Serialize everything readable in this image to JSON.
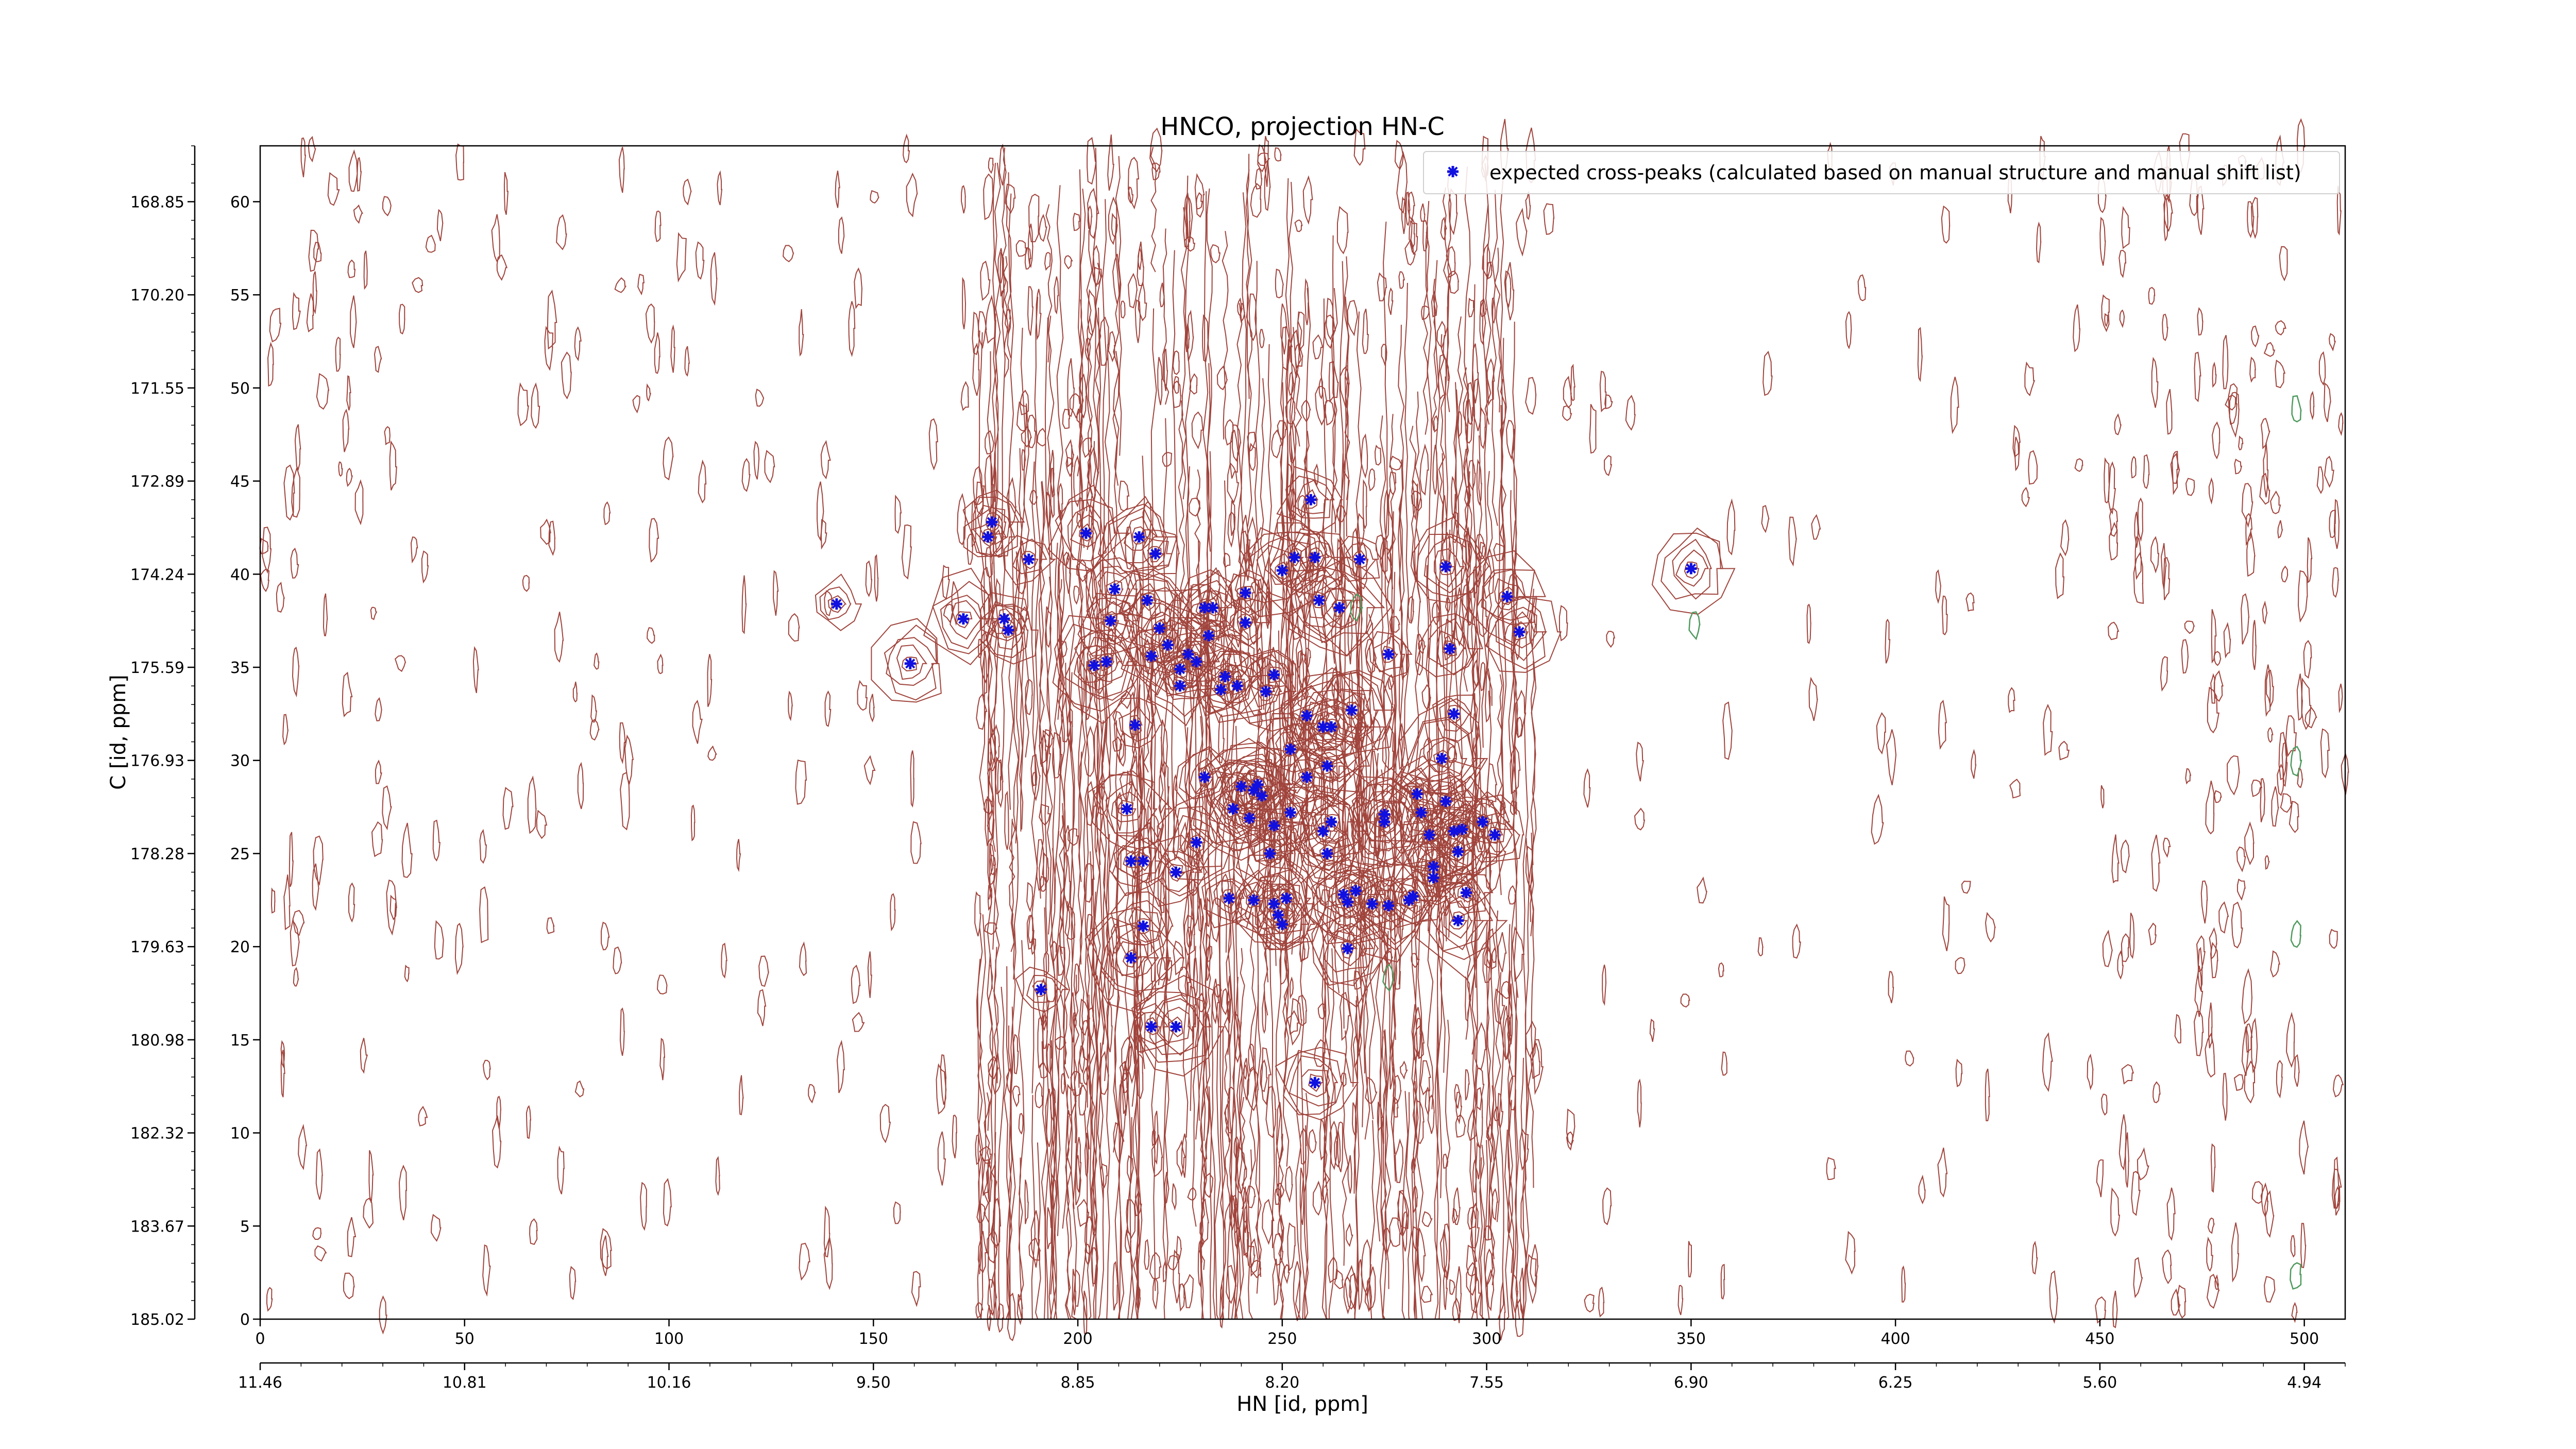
{
  "chart_data": {
    "type": "scatter",
    "title": "HNCO, projection HN-C",
    "xlabel": "HN [id, ppm]",
    "ylabel": "C [id, ppm]",
    "xlim": [
      0,
      510
    ],
    "ylim": [
      0,
      63
    ],
    "x_index_ticks": [
      "0",
      "50",
      "100",
      "150",
      "200",
      "250",
      "300",
      "350",
      "400",
      "450",
      "500"
    ],
    "x_ppm_ticks": [
      "11.46",
      "10.81",
      "10.16",
      "9.50",
      "8.85",
      "8.20",
      "7.55",
      "6.90",
      "6.25",
      "5.60",
      "4.94"
    ],
    "y_index_ticks": [
      "0",
      "5",
      "10",
      "15",
      "20",
      "25",
      "30",
      "35",
      "40",
      "45",
      "50",
      "55",
      "60"
    ],
    "y_ppm_ticks": [
      "185.02",
      "183.67",
      "182.32",
      "180.98",
      "179.63",
      "178.28",
      "176.93",
      "175.59",
      "174.24",
      "172.89",
      "171.55",
      "170.20",
      "168.85"
    ],
    "contour_color": "#a0443c",
    "negative_contour_color": "#4f9a5e",
    "marker_color": "#1010e0",
    "legend_position": "top-right",
    "series": [
      {
        "name": "expected cross-peaks (calculated based on manual structure and manual shift list)",
        "points": [
          [
            141,
            38.4
          ],
          [
            159,
            35.2
          ],
          [
            172,
            37.6
          ],
          [
            178,
            42.0
          ],
          [
            179,
            42.8
          ],
          [
            182,
            37.6
          ],
          [
            183,
            37.0
          ],
          [
            188,
            40.8
          ],
          [
            191,
            17.7
          ],
          [
            202,
            42.2
          ],
          [
            204,
            35.1
          ],
          [
            207,
            35.3
          ],
          [
            208,
            37.5
          ],
          [
            209,
            39.2
          ],
          [
            212,
            27.4
          ],
          [
            213,
            24.6
          ],
          [
            213,
            19.4
          ],
          [
            214,
            31.9
          ],
          [
            215,
            42.0
          ],
          [
            216,
            24.6
          ],
          [
            216,
            21.1
          ],
          [
            217,
            38.6
          ],
          [
            218,
            35.6
          ],
          [
            218,
            15.7
          ],
          [
            219,
            41.1
          ],
          [
            220,
            37.1
          ],
          [
            222,
            36.2
          ],
          [
            224,
            24.0
          ],
          [
            224,
            15.7
          ],
          [
            225,
            34.9
          ],
          [
            225,
            34.0
          ],
          [
            227,
            35.7
          ],
          [
            229,
            35.3
          ],
          [
            229,
            25.6
          ],
          [
            231,
            38.2
          ],
          [
            231,
            29.1
          ],
          [
            232,
            36.7
          ],
          [
            233,
            38.2
          ],
          [
            235,
            33.8
          ],
          [
            236,
            34.5
          ],
          [
            237,
            22.6
          ],
          [
            238,
            27.4
          ],
          [
            239,
            34.0
          ],
          [
            240,
            28.6
          ],
          [
            241,
            39.0
          ],
          [
            241,
            37.4
          ],
          [
            242,
            26.9
          ],
          [
            243,
            28.4
          ],
          [
            243,
            22.5
          ],
          [
            244,
            28.7
          ],
          [
            245,
            28.1
          ],
          [
            246,
            33.7
          ],
          [
            247,
            25.0
          ],
          [
            248,
            34.6
          ],
          [
            248,
            22.3
          ],
          [
            248,
            26.5
          ],
          [
            249,
            21.7
          ],
          [
            250,
            40.2
          ],
          [
            250,
            21.2
          ],
          [
            251,
            22.6
          ],
          [
            252,
            30.6
          ],
          [
            252,
            27.2
          ],
          [
            253,
            40.9
          ],
          [
            256,
            32.4
          ],
          [
            256,
            29.1
          ],
          [
            257,
            44.0
          ],
          [
            258,
            40.9
          ],
          [
            258,
            12.7
          ],
          [
            259,
            38.6
          ],
          [
            260,
            31.8
          ],
          [
            260,
            26.2
          ],
          [
            261,
            25.0
          ],
          [
            261,
            29.7
          ],
          [
            262,
            26.7
          ],
          [
            262,
            31.8
          ],
          [
            264,
            38.2
          ],
          [
            265,
            22.8
          ],
          [
            266,
            22.4
          ],
          [
            266,
            19.9
          ],
          [
            267,
            32.7
          ],
          [
            268,
            23.0
          ],
          [
            269,
            40.8
          ],
          [
            272,
            22.3
          ],
          [
            275,
            26.7
          ],
          [
            275,
            27.1
          ],
          [
            276,
            35.7
          ],
          [
            276,
            22.2
          ],
          [
            281,
            22.5
          ],
          [
            282,
            22.7
          ],
          [
            283,
            28.2
          ],
          [
            284,
            27.2
          ],
          [
            286,
            26.0
          ],
          [
            287,
            24.3
          ],
          [
            287,
            23.7
          ],
          [
            289,
            30.1
          ],
          [
            290,
            40.4
          ],
          [
            290,
            27.8
          ],
          [
            291,
            36.0
          ],
          [
            292,
            32.5
          ],
          [
            292,
            26.2
          ],
          [
            293,
            25.1
          ],
          [
            293,
            21.4
          ],
          [
            294,
            26.3
          ],
          [
            295,
            22.9
          ],
          [
            299,
            26.7
          ],
          [
            302,
            26.0
          ],
          [
            305,
            38.8
          ],
          [
            308,
            36.9
          ],
          [
            350,
            40.3
          ]
        ]
      }
    ]
  }
}
